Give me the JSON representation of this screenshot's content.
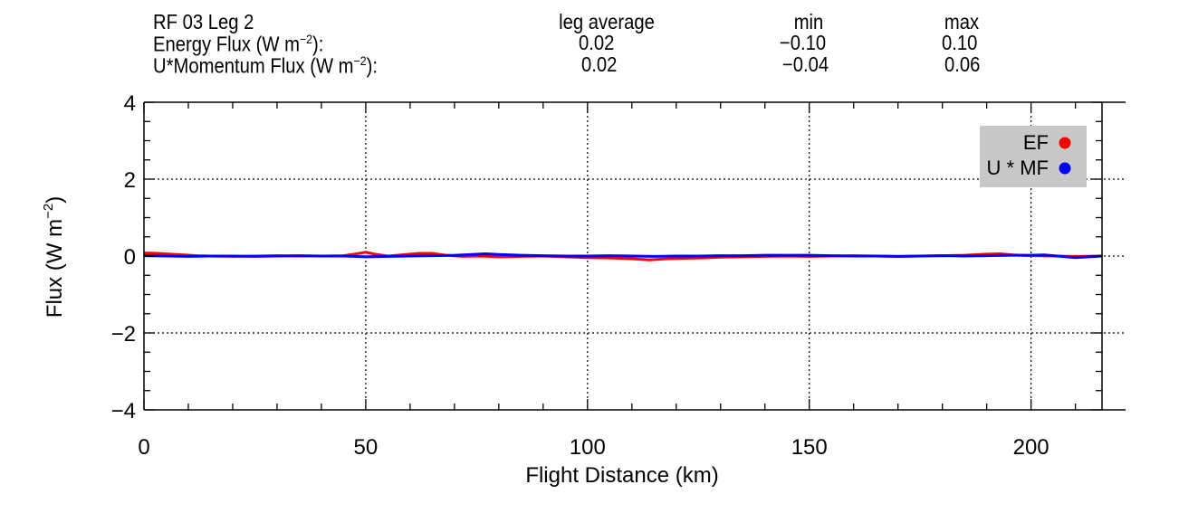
{
  "header": {
    "title": "RF 03 Leg 2",
    "col_avg": "leg average",
    "col_min": "min",
    "col_max": "max",
    "row1_label_main": "Energy Flux (W m",
    "row1_label_sup": "−2",
    "row1_label_end": "):",
    "row1_avg": "0.02",
    "row1_min": "−0.10",
    "row1_max": "0.10",
    "row2_label_main": "U*Momentum Flux (W m",
    "row2_label_sup": "−2",
    "row2_label_end": "):",
    "row2_avg": "0.02",
    "row2_min": "−0.04",
    "row2_max": "0.06"
  },
  "chart_data": {
    "type": "line",
    "xlabel": "Flight Distance (km)",
    "ylabel_main": "Flux (W m",
    "ylabel_sup": "−2",
    "ylabel_end": ")",
    "xlim": [
      0,
      216
    ],
    "ylim": [
      -4,
      4
    ],
    "xticks": [
      0,
      50,
      100,
      150,
      200
    ],
    "yticks": [
      -4,
      -2,
      0,
      2,
      4
    ],
    "ytick_labels": [
      "−4",
      "−2",
      "0",
      "2",
      "4"
    ],
    "grid": "dotted",
    "legend_position": "top-right",
    "series": [
      {
        "name": "EF",
        "color": "#ff0000",
        "x": [
          0,
          3,
          6,
          9,
          12,
          15,
          20,
          25,
          30,
          35,
          40,
          45,
          48,
          50,
          52,
          55,
          58,
          62,
          65,
          68,
          72,
          76,
          80,
          85,
          90,
          95,
          100,
          105,
          110,
          114,
          118,
          122,
          126,
          130,
          135,
          140,
          145,
          150,
          155,
          160,
          165,
          170,
          175,
          180,
          185,
          190,
          193,
          196,
          200,
          205,
          210,
          216
        ],
        "values": [
          0.08,
          0.07,
          0.05,
          0.03,
          0.01,
          0.0,
          -0.01,
          0.0,
          0.01,
          0.0,
          0.0,
          0.01,
          0.06,
          0.1,
          0.05,
          0.0,
          0.03,
          0.07,
          0.07,
          0.02,
          -0.01,
          0.0,
          -0.02,
          -0.01,
          0.0,
          -0.02,
          -0.04,
          -0.05,
          -0.07,
          -0.1,
          -0.07,
          -0.06,
          -0.05,
          -0.03,
          -0.02,
          -0.01,
          0.0,
          -0.01,
          0.0,
          0.01,
          0.0,
          -0.01,
          0.0,
          0.01,
          0.02,
          0.05,
          0.06,
          0.03,
          0.01,
          0.0,
          -0.01,
          0.0
        ]
      },
      {
        "name": "U * MF",
        "color": "#0000ff",
        "x": [
          0,
          5,
          10,
          15,
          20,
          25,
          30,
          35,
          40,
          45,
          50,
          55,
          60,
          65,
          70,
          74,
          77,
          80,
          85,
          90,
          95,
          100,
          105,
          110,
          115,
          120,
          125,
          130,
          135,
          140,
          145,
          150,
          155,
          160,
          165,
          170,
          175,
          180,
          185,
          190,
          195,
          200,
          203,
          206,
          210,
          216
        ],
        "values": [
          0.01,
          0.0,
          -0.01,
          0.0,
          0.0,
          -0.01,
          0.0,
          0.01,
          0.0,
          0.0,
          -0.02,
          -0.01,
          0.0,
          0.01,
          0.02,
          0.04,
          0.06,
          0.04,
          0.02,
          0.01,
          0.0,
          0.0,
          0.01,
          0.0,
          -0.01,
          0.0,
          0.0,
          0.01,
          0.01,
          0.02,
          0.02,
          0.02,
          0.01,
          0.0,
          0.0,
          -0.01,
          0.0,
          0.01,
          0.0,
          0.01,
          0.02,
          0.02,
          0.03,
          0.0,
          -0.04,
          0.0
        ]
      }
    ]
  }
}
